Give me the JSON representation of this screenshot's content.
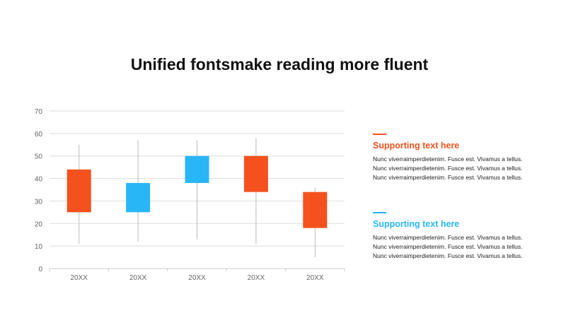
{
  "title": "Unified fontsmake reading more fluent",
  "colors": {
    "up": "#29B6F6",
    "down": "#F4511E",
    "grid": "#dddddd",
    "wick": "#bbbbbb"
  },
  "chart_data": {
    "type": "candlestick",
    "categories": [
      "20XX",
      "20XX",
      "20XX",
      "20XX",
      "20XX"
    ],
    "candles": [
      {
        "open": 44,
        "close": 25,
        "low": 11,
        "high": 55
      },
      {
        "open": 25,
        "close": 38,
        "low": 12,
        "high": 57
      },
      {
        "open": 38,
        "close": 50,
        "low": 13,
        "high": 57
      },
      {
        "open": 50,
        "close": 34,
        "low": 11,
        "high": 58
      },
      {
        "open": 34,
        "close": 18,
        "low": 5,
        "high": 36
      }
    ],
    "yticks": [
      0,
      10,
      20,
      30,
      40,
      50,
      60,
      70
    ],
    "ylim": [
      0,
      70
    ],
    "grid": true
  },
  "blocks": [
    {
      "heading": "Supporting text here",
      "color": "#F4511E",
      "lines": [
        "Nunc  viverraimperdietenim.  Fusce est. Vivamus  a tellus.",
        "Nunc  viverraimperdietenim.  Fusce est. Vivamus  a tellus.",
        "Nunc  viverraimperdietenim.  Fusce est. Vivamus  a tellus."
      ]
    },
    {
      "heading": "Supporting text here",
      "color": "#29B6F6",
      "lines": [
        "Nunc  viverraimperdietenim.  Fusce est. Vivamus  a tellus.",
        "Nunc  viverraimperdietenim.  Fusce est. Vivamus  a tellus.",
        "Nunc  viverraimperdietenim.  Fusce est. Vivamus  a tellus."
      ]
    }
  ]
}
